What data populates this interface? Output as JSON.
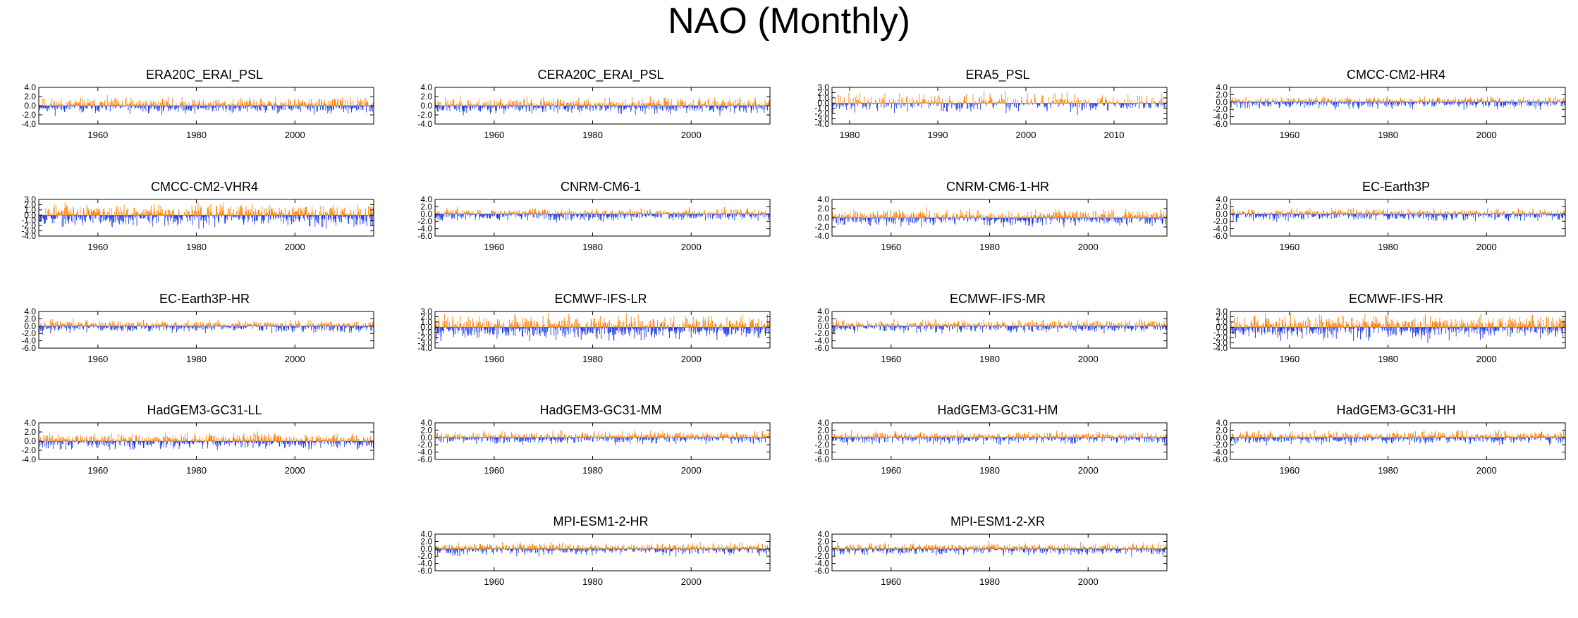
{
  "title": "NAO (Monthly)",
  "colors": {
    "positive": "#ff7f00",
    "negative": "#1c36e0",
    "axis": "#000000"
  },
  "chart_data": [
    {
      "type": "bar",
      "title": "ERA20C_ERAI_PSL",
      "x_range": [
        1948,
        2016
      ],
      "ylim": [
        -4,
        4
      ],
      "yticks": [
        "4.0",
        "2.0",
        "0.0",
        "-2.0",
        "-4.0"
      ],
      "xticks": [
        "1960",
        "1980",
        "2000"
      ],
      "seed": 11,
      "pos_scale": 1.0,
      "neg_scale": 1.0
    },
    {
      "type": "bar",
      "title": "CERA20C_ERAI_PSL",
      "x_range": [
        1948,
        2016
      ],
      "ylim": [
        -4,
        4
      ],
      "yticks": [
        "4.0",
        "2.0",
        "0.0",
        "-2.0",
        "-4.0"
      ],
      "xticks": [
        "1960",
        "1980",
        "2000"
      ],
      "seed": 23,
      "pos_scale": 1.0,
      "neg_scale": 1.0
    },
    {
      "type": "bar",
      "title": "ERA5_PSL",
      "x_range": [
        1978,
        2016
      ],
      "ylim": [
        -4,
        3
      ],
      "yticks": [
        "3.0",
        "2.0",
        "1.0",
        "0.0",
        "-1.0",
        "-2.0",
        "-3.0",
        "-4.0"
      ],
      "xticks": [
        "1980",
        "1990",
        "2000",
        "2010"
      ],
      "seed": 37,
      "pos_scale": 1.1,
      "neg_scale": 1.1
    },
    {
      "type": "bar",
      "title": "CMCC-CM2-HR4",
      "x_range": [
        1948,
        2016
      ],
      "ylim": [
        -6,
        4
      ],
      "yticks": [
        "4.0",
        "2.0",
        "0.0",
        "-2.0",
        "-4.0",
        "-6.0"
      ],
      "xticks": [
        "1960",
        "1980",
        "2000"
      ],
      "seed": 41,
      "pos_scale": 0.8,
      "neg_scale": 1.0
    },
    {
      "type": "bar",
      "title": "CMCC-CM2-VHR4",
      "x_range": [
        1948,
        2016
      ],
      "ylim": [
        -4,
        3
      ],
      "yticks": [
        "3.0",
        "2.0",
        "1.0",
        "0.0",
        "-1.0",
        "-2.0",
        "-3.0",
        "-4.0"
      ],
      "xticks": [
        "1960",
        "1980",
        "2000"
      ],
      "seed": 53,
      "pos_scale": 1.2,
      "neg_scale": 1.2
    },
    {
      "type": "bar",
      "title": "CNRM-CM6-1",
      "x_range": [
        1948,
        2016
      ],
      "ylim": [
        -6,
        4
      ],
      "yticks": [
        "4.0",
        "2.0",
        "0.0",
        "-2.0",
        "-4.0",
        "-6.0"
      ],
      "xticks": [
        "1960",
        "1980",
        "2000"
      ],
      "seed": 67,
      "pos_scale": 0.9,
      "neg_scale": 1.0
    },
    {
      "type": "bar",
      "title": "CNRM-CM6-1-HR",
      "x_range": [
        1948,
        2016
      ],
      "ylim": [
        -4,
        4
      ],
      "yticks": [
        "4.0",
        "2.0",
        "0.0",
        "-2.0",
        "-4.0"
      ],
      "xticks": [
        "1960",
        "1980",
        "2000"
      ],
      "seed": 71,
      "pos_scale": 1.0,
      "neg_scale": 1.0
    },
    {
      "type": "bar",
      "title": "EC-Earth3P",
      "x_range": [
        1948,
        2016
      ],
      "ylim": [
        -6,
        4
      ],
      "yticks": [
        "4.0",
        "2.0",
        "0.0",
        "-2.0",
        "-4.0",
        "-6.0"
      ],
      "xticks": [
        "1960",
        "1980",
        "2000"
      ],
      "seed": 83,
      "pos_scale": 0.9,
      "neg_scale": 1.0
    },
    {
      "type": "bar",
      "title": "EC-Earth3P-HR",
      "x_range": [
        1948,
        2016
      ],
      "ylim": [
        -6,
        4
      ],
      "yticks": [
        "4.0",
        "2.0",
        "0.0",
        "-2.0",
        "-4.0",
        "-6.0"
      ],
      "xticks": [
        "1960",
        "1980",
        "2000"
      ],
      "seed": 97,
      "pos_scale": 0.9,
      "neg_scale": 1.0
    },
    {
      "type": "bar",
      "title": "ECMWF-IFS-LR",
      "x_range": [
        1948,
        2016
      ],
      "ylim": [
        -4,
        3
      ],
      "yticks": [
        "3.0",
        "2.0",
        "1.0",
        "0.0",
        "-1.0",
        "-2.0",
        "-3.0",
        "-4.0"
      ],
      "xticks": [
        "1960",
        "1980",
        "2000"
      ],
      "seed": 101,
      "pos_scale": 1.3,
      "neg_scale": 1.3
    },
    {
      "type": "bar",
      "title": "ECMWF-IFS-MR",
      "x_range": [
        1948,
        2016
      ],
      "ylim": [
        -6,
        4
      ],
      "yticks": [
        "4.0",
        "2.0",
        "0.0",
        "-2.0",
        "-4.0",
        "-6.0"
      ],
      "xticks": [
        "1960",
        "1980",
        "2000"
      ],
      "seed": 113,
      "pos_scale": 1.0,
      "neg_scale": 1.0
    },
    {
      "type": "bar",
      "title": "ECMWF-IFS-HR",
      "x_range": [
        1948,
        2016
      ],
      "ylim": [
        -4,
        3
      ],
      "yticks": [
        "3.0",
        "2.0",
        "1.0",
        "0.0",
        "-1.0",
        "-2.0",
        "-3.0",
        "-4.0"
      ],
      "xticks": [
        "1960",
        "1980",
        "2000"
      ],
      "seed": 127,
      "pos_scale": 1.3,
      "neg_scale": 1.3
    },
    {
      "type": "bar",
      "title": "HadGEM3-GC31-LL",
      "x_range": [
        1948,
        2016
      ],
      "ylim": [
        -4,
        4
      ],
      "yticks": [
        "4.0",
        "2.0",
        "0.0",
        "-2.0",
        "-4.0"
      ],
      "xticks": [
        "1960",
        "1980",
        "2000"
      ],
      "seed": 131,
      "pos_scale": 1.0,
      "neg_scale": 1.0
    },
    {
      "type": "bar",
      "title": "HadGEM3-GC31-MM",
      "x_range": [
        1948,
        2016
      ],
      "ylim": [
        -6,
        4
      ],
      "yticks": [
        "4.0",
        "2.0",
        "0.0",
        "-2.0",
        "-4.0",
        "-6.0"
      ],
      "xticks": [
        "1960",
        "1980",
        "2000"
      ],
      "seed": 139,
      "pos_scale": 0.9,
      "neg_scale": 1.0
    },
    {
      "type": "bar",
      "title": "HadGEM3-GC31-HM",
      "x_range": [
        1948,
        2016
      ],
      "ylim": [
        -6,
        4
      ],
      "yticks": [
        "4.0",
        "2.0",
        "0.0",
        "-2.0",
        "-4.0",
        "-6.0"
      ],
      "xticks": [
        "1960",
        "1980",
        "2000"
      ],
      "seed": 149,
      "pos_scale": 0.9,
      "neg_scale": 1.0
    },
    {
      "type": "bar",
      "title": "HadGEM3-GC31-HH",
      "x_range": [
        1948,
        2016
      ],
      "ylim": [
        -6,
        4
      ],
      "yticks": [
        "4.0",
        "2.0",
        "0.0",
        "-2.0",
        "-4.0",
        "-6.0"
      ],
      "xticks": [
        "1960",
        "1980",
        "2000"
      ],
      "seed": 157,
      "pos_scale": 1.0,
      "neg_scale": 1.0
    },
    {
      "type": "bar",
      "title": "MPI-ESM1-2-HR",
      "x_range": [
        1948,
        2016
      ],
      "ylim": [
        -6,
        4
      ],
      "yticks": [
        "4.0",
        "2.0",
        "0.0",
        "-2.0",
        "-4.0",
        "-6.0"
      ],
      "xticks": [
        "1960",
        "1980",
        "2000"
      ],
      "seed": 163,
      "pos_scale": 0.9,
      "neg_scale": 1.0
    },
    {
      "type": "bar",
      "title": "MPI-ESM1-2-XR",
      "x_range": [
        1948,
        2016
      ],
      "ylim": [
        -6,
        4
      ],
      "yticks": [
        "4.0",
        "2.0",
        "0.0",
        "-2.0",
        "-4.0",
        "-6.0"
      ],
      "xticks": [
        "1960",
        "1980",
        "2000"
      ],
      "seed": 173,
      "pos_scale": 0.9,
      "neg_scale": 1.0
    }
  ]
}
